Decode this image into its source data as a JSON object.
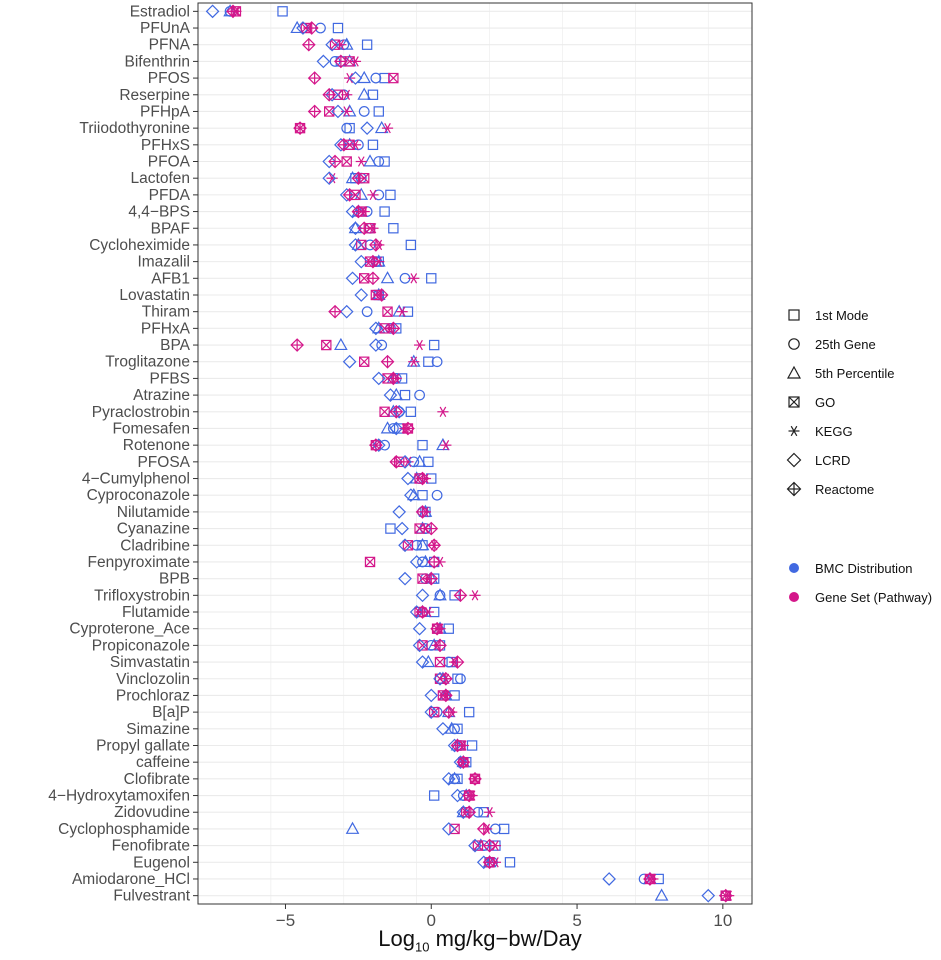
{
  "chart_data": {
    "type": "scatter",
    "title": "",
    "xlabel_prefix": "Log",
    "xlabel_sub": "10",
    "xlabel_suffix": " mg/kg−bw/Day",
    "ylabel": "",
    "xlim": [
      -8,
      11
    ],
    "x_ticks": [
      -5,
      0,
      5,
      10
    ],
    "x_tick_labels": [
      "−5",
      "0",
      "5",
      "10"
    ],
    "grid": true,
    "legend_position": "right",
    "colors": {
      "BMC Distribution": "#4169e1",
      "Gene Set (Pathway)": "#d4178a"
    },
    "shape_legend": [
      "1st Mode",
      "25th Gene",
      "5th Percentile",
      "GO",
      "KEGG",
      "LCRD",
      "Reactome"
    ],
    "color_legend": [
      "BMC Distribution",
      "Gene Set (Pathway)"
    ],
    "categories": [
      "Estradiol",
      "PFUnA",
      "PFNA",
      "Bifenthrin",
      "PFOS",
      "Reserpine",
      "PFHpA",
      "Triiodothyronine",
      "PFHxS",
      "PFOA",
      "Lactofen",
      "PFDA",
      "4,4−BPS",
      "BPAF",
      "Cycloheximide",
      "Imazalil",
      "AFB1",
      "Lovastatin",
      "Thiram",
      "PFHxA",
      "BPA",
      "Troglitazone",
      "PFBS",
      "Atrazine",
      "Pyraclostrobin",
      "Fomesafen",
      "Rotenone",
      "PFOSA",
      "4−Cumylphenol",
      "Cyproconazole",
      "Nilutamide",
      "Cyanazine",
      "Cladribine",
      "Fenpyroximate",
      "BPB",
      "Trifloxystrobin",
      "Flutamide",
      "Cyproterone_Ace",
      "Propiconazole",
      "Simvastatin",
      "Vinclozolin",
      "Prochloraz",
      "B[a]P",
      "Simazine",
      "Propyl gallate",
      "caffeine",
      "Clofibrate",
      "4−Hydroxytamoxifen",
      "Zidovudine",
      "Cyclophosphamide",
      "Fenofibrate",
      "Eugenol",
      "Amiodarone_HCl",
      "Fulvestrant"
    ],
    "series": [
      {
        "name": "1st Mode",
        "group": "BMC Distribution",
        "values": [
          -5.1,
          -3.2,
          -2.2,
          -3.1,
          -1.6,
          -2.0,
          -1.8,
          -2.8,
          -2.0,
          -1.6,
          -2.6,
          -1.4,
          -1.6,
          -1.3,
          -0.7,
          -1.8,
          0.0,
          -1.8,
          -0.8,
          -1.2,
          0.1,
          -0.1,
          -1.0,
          -0.9,
          -0.7,
          -1.1,
          -0.3,
          -0.1,
          0.0,
          -0.3,
          -0.2,
          -1.4,
          -0.3,
          0.1,
          0.1,
          0.8,
          0.1,
          0.6,
          0.3,
          0.7,
          0.9,
          0.8,
          1.3,
          0.9,
          1.4,
          1.2,
          0.9,
          0.1,
          1.8,
          2.5,
          2.2,
          2.7,
          7.8,
          10.1
        ]
      },
      {
        "name": "25th Gene",
        "group": "BMC Distribution",
        "values": [
          -6.9,
          -3.8,
          -3.0,
          -3.3,
          -1.9,
          -3.0,
          -2.3,
          -2.9,
          -2.5,
          -1.8,
          -2.4,
          -1.8,
          -2.2,
          -2.1,
          -2.1,
          -1.9,
          -0.9,
          -1.8,
          -2.2,
          -1.4,
          -1.7,
          0.2,
          -1.2,
          -0.4,
          -1.1,
          -1.3,
          -1.6,
          -0.6,
          -0.4,
          0.2,
          -0.3,
          -0.2,
          -0.5,
          -0.3,
          -0.2,
          0.3,
          -0.3,
          0.2,
          0.0,
          0.6,
          1.0,
          0.5,
          0.2,
          0.8,
          1.0,
          1.1,
          0.8,
          1.1,
          1.6,
          2.2,
          1.8,
          2.1,
          7.3,
          10.1
        ]
      },
      {
        "name": "5th Percentile",
        "group": "BMC Distribution",
        "values": [
          -6.9,
          -4.6,
          -2.9,
          -2.8,
          -2.3,
          -2.3,
          -2.8,
          -1.7,
          -2.8,
          -2.1,
          -2.7,
          -2.4,
          -2.5,
          -2.6,
          -2.5,
          -1.8,
          -1.5,
          -1.8,
          -1.1,
          -1.8,
          -3.1,
          -0.6,
          -1.3,
          -1.2,
          -1.3,
          -1.5,
          0.4,
          -0.4,
          -0.5,
          -0.6,
          -0.2,
          -0.3,
          -0.3,
          -0.2,
          0.0,
          0.3,
          -0.3,
          0.3,
          0.1,
          -0.1,
          0.4,
          0.5,
          0.6,
          0.7,
          0.9,
          1.1,
          0.8,
          1.2,
          1.1,
          -2.7,
          1.7,
          2.0,
          7.5,
          7.9
        ]
      },
      {
        "name": "GO",
        "group": "Gene Set (Pathway)",
        "values": [
          -6.7,
          -4.3,
          -3.3,
          -2.8,
          -1.3,
          -3.2,
          -3.5,
          -4.5,
          -2.8,
          -2.9,
          -2.3,
          -2.6,
          -2.4,
          -2.1,
          -2.4,
          -2.1,
          -2.3,
          -1.9,
          -1.5,
          -1.6,
          -3.6,
          -2.3,
          -1.5,
          null,
          -1.6,
          -0.8,
          -1.9,
          -1.1,
          -0.4,
          null,
          null,
          -0.4,
          -0.8,
          -2.1,
          -0.3,
          null,
          -0.4,
          0.2,
          -0.3,
          0.3,
          0.3,
          0.4,
          0.1,
          null,
          1.0,
          1.1,
          1.5,
          1.3,
          1.2,
          0.8,
          1.6,
          2.0,
          7.5,
          10.1
        ]
      },
      {
        "name": "KEGG",
        "group": "Gene Set (Pathway)",
        "values": [
          -6.7,
          -4.2,
          -3.1,
          -2.6,
          -2.8,
          -2.9,
          -2.9,
          -1.5,
          -2.6,
          -2.4,
          -3.4,
          -2.0,
          -2.3,
          -2.0,
          -1.8,
          -1.8,
          -0.6,
          -1.8,
          -1.0,
          -1.4,
          -0.4,
          -0.6,
          -1.2,
          null,
          0.4,
          -0.9,
          0.5,
          -0.8,
          -0.2,
          null,
          -0.2,
          -0.2,
          0.1,
          0.3,
          -0.1,
          1.5,
          -0.1,
          0.3,
          0.2,
          0.8,
          0.5,
          0.5,
          0.7,
          null,
          1.1,
          1.1,
          1.5,
          1.4,
          2.0,
          1.9,
          2.2,
          2.2,
          7.6,
          10.2
        ]
      },
      {
        "name": "LCRD",
        "group": "BMC Distribution",
        "values": [
          -7.5,
          -4.4,
          -3.4,
          -3.7,
          -2.6,
          -3.4,
          -3.2,
          -2.2,
          -3.1,
          -3.5,
          -3.5,
          -2.9,
          -2.7,
          -2.6,
          -2.6,
          -2.4,
          -2.7,
          -2.4,
          -2.9,
          -1.9,
          -1.9,
          -2.8,
          -1.8,
          -1.4,
          -1.1,
          -1.2,
          -1.8,
          -0.9,
          -0.8,
          -0.7,
          -1.1,
          -1.0,
          -0.9,
          -0.5,
          -0.9,
          -0.3,
          -0.5,
          -0.4,
          -0.4,
          -0.3,
          0.3,
          0.0,
          0.0,
          0.4,
          0.8,
          1.0,
          0.6,
          0.9,
          1.1,
          0.6,
          1.5,
          1.8,
          6.1,
          9.5
        ]
      },
      {
        "name": "Reactome",
        "group": "Gene Set (Pathway)",
        "values": [
          -6.8,
          -4.1,
          -4.2,
          -3.1,
          -4.0,
          -3.5,
          -4.0,
          -4.5,
          -3.0,
          -3.3,
          -2.5,
          -2.8,
          -2.5,
          -2.3,
          -1.9,
          -2.0,
          -2.0,
          -1.7,
          -3.3,
          -1.3,
          -4.6,
          -1.5,
          -1.3,
          null,
          -1.2,
          -0.8,
          -1.9,
          -1.2,
          -0.3,
          null,
          -0.3,
          0.0,
          0.1,
          0.1,
          0.0,
          1.0,
          -0.3,
          0.2,
          0.3,
          0.9,
          0.5,
          0.5,
          0.6,
          null,
          0.9,
          1.1,
          1.5,
          1.3,
          1.3,
          1.8,
          2.0,
          2.0,
          7.5,
          10.1
        ]
      }
    ]
  }
}
